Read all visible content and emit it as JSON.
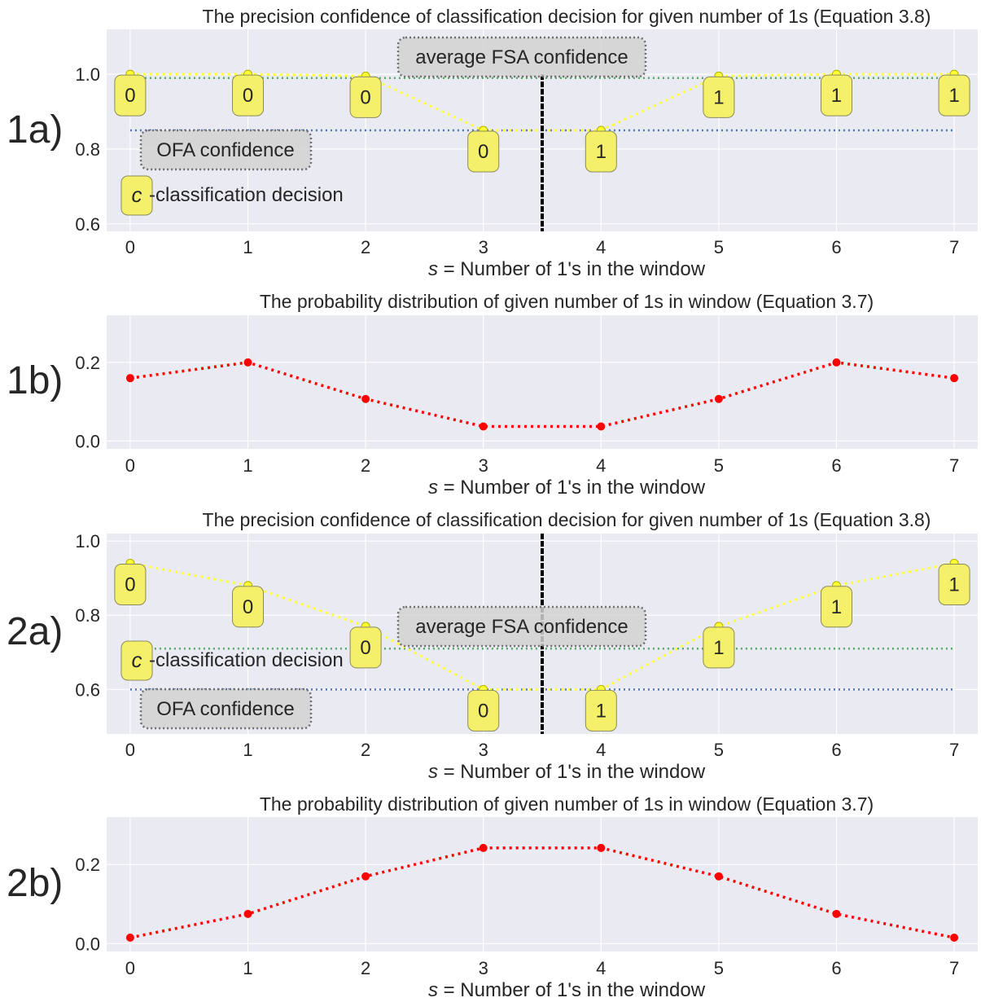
{
  "colors": {
    "panel_bg": "#eaeaf2",
    "grid": "#ffffff",
    "tick_text": "#262626",
    "confidence_line": "#ffff33",
    "confidence_marker": "#ffff33",
    "box_fill": "#f5f06a",
    "box_stroke": "#8a8a5a",
    "ofa_line": "#4c72b0",
    "avg_fsa_line": "#55a868",
    "threshold_line": "#000000",
    "probability": "#ff0000"
  },
  "chart_data": [
    {
      "id": "1a",
      "panel_label": "1a)",
      "type": "line",
      "title": "The precision confidence of classification decision for given number of 1s (Equation 3.8)",
      "xlabel_prefix": "s",
      "xlabel_rest": " = Number of 1's in the window",
      "ylabel": "",
      "x": [
        0,
        1,
        2,
        3,
        4,
        5,
        6,
        7
      ],
      "xlim": [
        -0.2,
        7.2
      ],
      "ylim": [
        0.58,
        1.12
      ],
      "yticks": [
        0.6,
        0.8,
        1.0
      ],
      "ytick_labels": [
        "0.6",
        "0.8",
        "1.0"
      ],
      "series": [
        {
          "values": [
            1.0,
            1.0,
            0.995,
            0.85,
            0.85,
            0.995,
            1.0,
            1.0
          ]
        }
      ],
      "decisions": [
        "0",
        "0",
        "0",
        "0",
        "1",
        "1",
        "1",
        "1"
      ],
      "ofa_confidence": 0.85,
      "avg_fsa_confidence": 0.99,
      "threshold_x": 3.5,
      "legend": {
        "avg_fsa_label": "average FSA confidence",
        "ofa_label": "OFA confidence",
        "classification_symbol": "c",
        "classification_label": "-classification decision"
      }
    },
    {
      "id": "1b",
      "panel_label": "1b)",
      "type": "line",
      "title": "The probability distribution of given number of 1s in window (Equation 3.7)",
      "xlabel_prefix": "s",
      "xlabel_rest": " = Number of 1's in the window",
      "ylabel": "",
      "x": [
        0,
        1,
        2,
        3,
        4,
        5,
        6,
        7
      ],
      "xlim": [
        -0.2,
        7.2
      ],
      "ylim": [
        -0.02,
        0.32
      ],
      "yticks": [
        0.0,
        0.2
      ],
      "ytick_labels": [
        "0.0",
        "0.2"
      ],
      "series": [
        {
          "values": [
            0.16,
            0.2,
            0.107,
            0.037,
            0.037,
            0.107,
            0.2,
            0.16
          ]
        }
      ]
    },
    {
      "id": "2a",
      "panel_label": "2a)",
      "type": "line",
      "title": "The precision confidence of classification decision for given number of 1s (Equation 3.8)",
      "xlabel_prefix": "s",
      "xlabel_rest": " = Number of 1's in the window",
      "ylabel": "",
      "x": [
        0,
        1,
        2,
        3,
        4,
        5,
        6,
        7
      ],
      "xlim": [
        -0.2,
        7.2
      ],
      "ylim": [
        0.48,
        1.02
      ],
      "yticks": [
        0.6,
        0.8,
        1.0
      ],
      "ytick_labels": [
        "0.6",
        "0.8",
        "1.0"
      ],
      "series": [
        {
          "values": [
            0.94,
            0.88,
            0.77,
            0.6,
            0.6,
            0.77,
            0.88,
            0.94
          ]
        }
      ],
      "decisions": [
        "0",
        "0",
        "0",
        "0",
        "1",
        "1",
        "1",
        "1"
      ],
      "ofa_confidence": 0.6,
      "avg_fsa_confidence": 0.71,
      "threshold_x": 3.5,
      "legend": {
        "avg_fsa_label": "average FSA confidence",
        "ofa_label": "OFA confidence",
        "classification_symbol": "c",
        "classification_label": "-classification decision"
      }
    },
    {
      "id": "2b",
      "panel_label": "2b)",
      "type": "line",
      "title": "The probability distribution of given number of 1s in window (Equation 3.7)",
      "xlabel_prefix": "s",
      "xlabel_rest": " = Number of 1's in the window",
      "ylabel": "",
      "x": [
        0,
        1,
        2,
        3,
        4,
        5,
        6,
        7
      ],
      "xlim": [
        -0.2,
        7.2
      ],
      "ylim": [
        -0.02,
        0.32
      ],
      "yticks": [
        0.0,
        0.2
      ],
      "ytick_labels": [
        "0.0",
        "0.2"
      ],
      "series": [
        {
          "values": [
            0.015,
            0.075,
            0.17,
            0.242,
            0.242,
            0.17,
            0.075,
            0.015
          ]
        }
      ]
    }
  ]
}
